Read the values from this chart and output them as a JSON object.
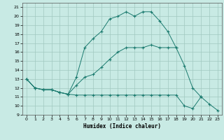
{
  "title": "",
  "xlabel": "Humidex (Indice chaleur)",
  "bg_color": "#c8eae4",
  "line_color": "#1a7a6e",
  "grid_color": "#a0c8c0",
  "yticks": [
    9,
    10,
    11,
    12,
    13,
    14,
    15,
    16,
    17,
    18,
    19,
    20,
    21
  ],
  "xticks": [
    0,
    1,
    2,
    3,
    4,
    5,
    6,
    7,
    8,
    9,
    10,
    11,
    12,
    13,
    14,
    15,
    16,
    17,
    18,
    19,
    20,
    21,
    22,
    23
  ],
  "xlim": [
    -0.5,
    23.5
  ],
  "ylim": [
    9,
    21.5
  ],
  "line1_x": [
    0,
    1,
    2,
    3,
    4,
    5,
    6,
    7,
    8,
    9,
    10,
    11,
    12,
    13,
    14,
    15,
    16,
    17,
    18
  ],
  "line1_y": [
    13,
    12,
    11.8,
    11.8,
    11.5,
    11.3,
    13.2,
    16.5,
    17.5,
    18.3,
    19.7,
    20.0,
    20.5,
    20.0,
    20.5,
    20.5,
    19.5,
    18.3,
    16.5
  ],
  "line2_x": [
    0,
    1,
    2,
    3,
    4,
    5,
    6,
    7,
    8,
    9,
    10,
    11,
    12,
    13,
    14,
    15,
    16,
    17,
    18,
    19,
    20,
    21
  ],
  "line2_y": [
    13,
    12,
    11.8,
    11.8,
    11.5,
    11.3,
    12.3,
    13.2,
    13.5,
    14.3,
    15.2,
    16.0,
    16.5,
    16.5,
    16.5,
    16.8,
    16.5,
    16.5,
    16.5,
    14.5,
    12.0,
    11.0
  ],
  "line3_x": [
    0,
    1,
    2,
    3,
    4,
    5,
    6,
    7,
    8,
    9,
    10,
    11,
    12,
    13,
    14,
    15,
    16,
    17,
    18,
    19,
    20,
    21,
    22,
    23
  ],
  "line3_y": [
    13,
    12,
    11.8,
    11.8,
    11.5,
    11.3,
    11.2,
    11.2,
    11.2,
    11.2,
    11.2,
    11.2,
    11.2,
    11.2,
    11.2,
    11.2,
    11.2,
    11.2,
    11.2,
    10.0,
    9.7,
    11.0,
    10.2,
    9.5
  ]
}
